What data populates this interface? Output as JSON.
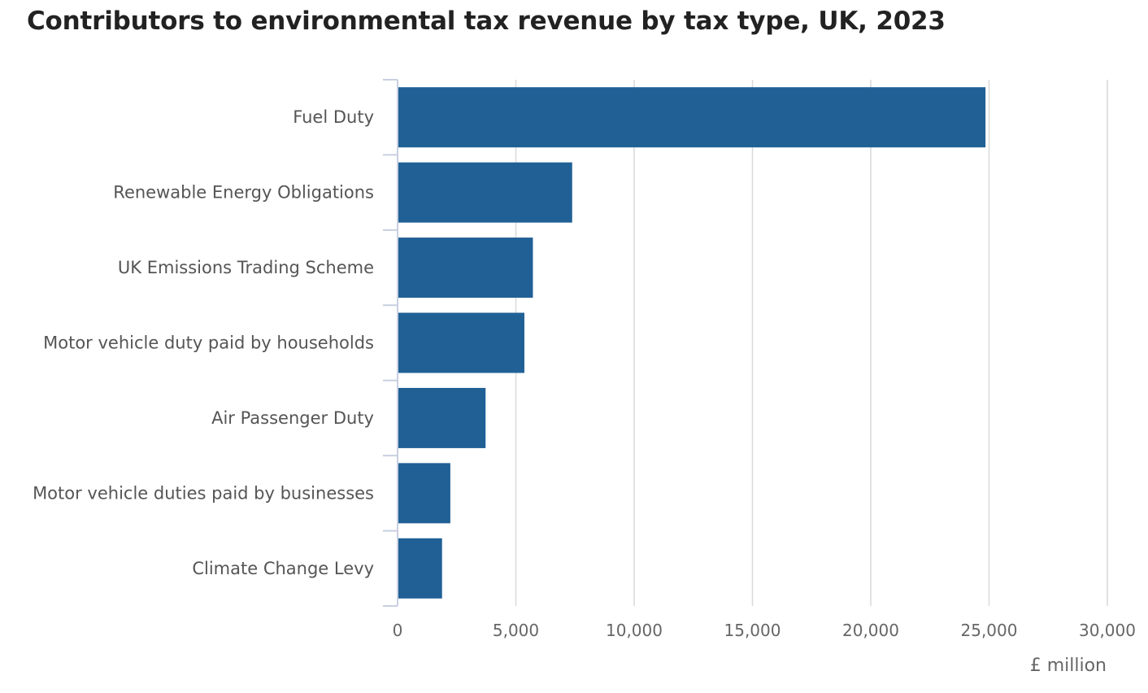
{
  "chart_data": {
    "type": "bar",
    "orientation": "horizontal",
    "title": "Contributors to environmental tax revenue by tax type, UK, 2023",
    "xlabel": "£ million",
    "ylabel": "",
    "xlim": [
      0,
      30000
    ],
    "x_ticks": [
      0,
      5000,
      10000,
      15000,
      20000,
      25000,
      30000
    ],
    "x_tick_labels": [
      "0",
      "5,000",
      "10,000",
      "15,000",
      "20,000",
      "25,000",
      "30,000"
    ],
    "grid": "vertical",
    "legend": "none",
    "categories": [
      "Fuel Duty",
      "Renewable Energy Obligations",
      "UK Emissions Trading Scheme",
      "Motor vehicle duty paid by households",
      "Air Passenger Duty",
      "Motor vehicle duties paid by businesses",
      "Climate Change Levy"
    ],
    "values": [
      24850,
      7380,
      5720,
      5360,
      3720,
      2230,
      1880
    ],
    "colors": {
      "bar": "#206095",
      "grid": "#d9d9d9",
      "axis": "#c8d0e0",
      "label_text": "#555555",
      "title_text": "#222222"
    }
  }
}
